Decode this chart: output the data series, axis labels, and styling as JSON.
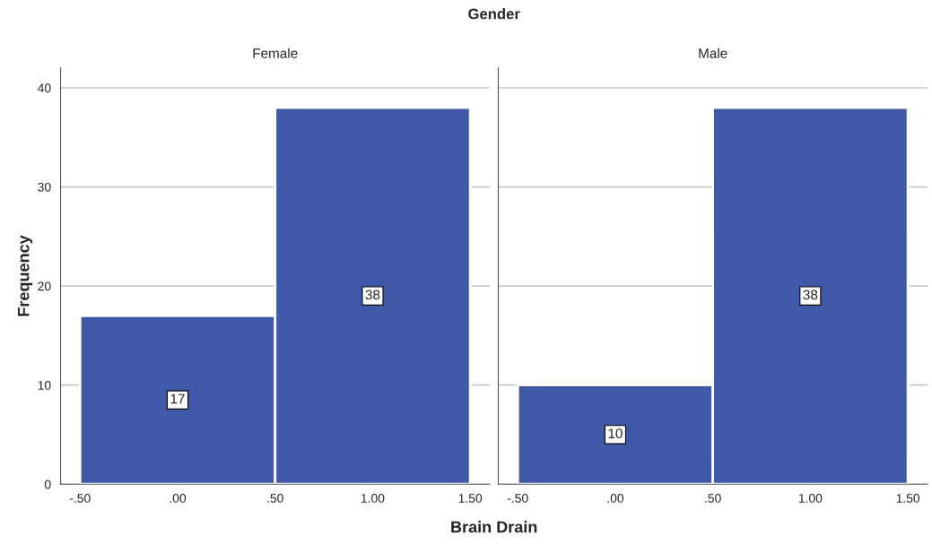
{
  "chart_data": [
    {
      "type": "histogram",
      "title": "Female",
      "xlabel": "Brain Drain",
      "ylabel": "Frequency",
      "annotations": [
        "Gender"
      ],
      "bins": [
        -0.5,
        0.5,
        1.5
      ],
      "values": [
        17,
        38
      ],
      "color": "#3f58a8",
      "data_labels": true,
      "xlim": [
        -0.6,
        1.6
      ],
      "xticks": [
        {
          "value": -0.5,
          "label": "-.50"
        },
        {
          "value": 0,
          "label": ".00"
        },
        {
          "value": 0.5,
          "label": ".50"
        },
        {
          "value": 1,
          "label": "1.00"
        },
        {
          "value": 1.5,
          "label": "1.50"
        }
      ],
      "ylim": [
        0,
        42
      ],
      "yticks": [
        0,
        10,
        20,
        30,
        40
      ],
      "grid": "y"
    },
    {
      "type": "histogram",
      "title": "Male",
      "bins": [
        -0.5,
        0.5,
        1.5
      ],
      "values": [
        10,
        38
      ],
      "color": "#3f58a8",
      "data_labels": true,
      "xlim": [
        -0.6,
        1.6
      ],
      "xticks": [
        {
          "value": -0.5,
          "label": "-.50"
        },
        {
          "value": 0,
          "label": ".00"
        },
        {
          "value": 0.5,
          "label": ".50"
        },
        {
          "value": 1,
          "label": "1.00"
        },
        {
          "value": 1.5,
          "label": "1.50"
        }
      ],
      "ylim": [
        0,
        42
      ],
      "yticks": [
        0,
        10,
        20,
        30,
        40
      ],
      "grid": "y",
      "tick_labels": "x"
    }
  ]
}
